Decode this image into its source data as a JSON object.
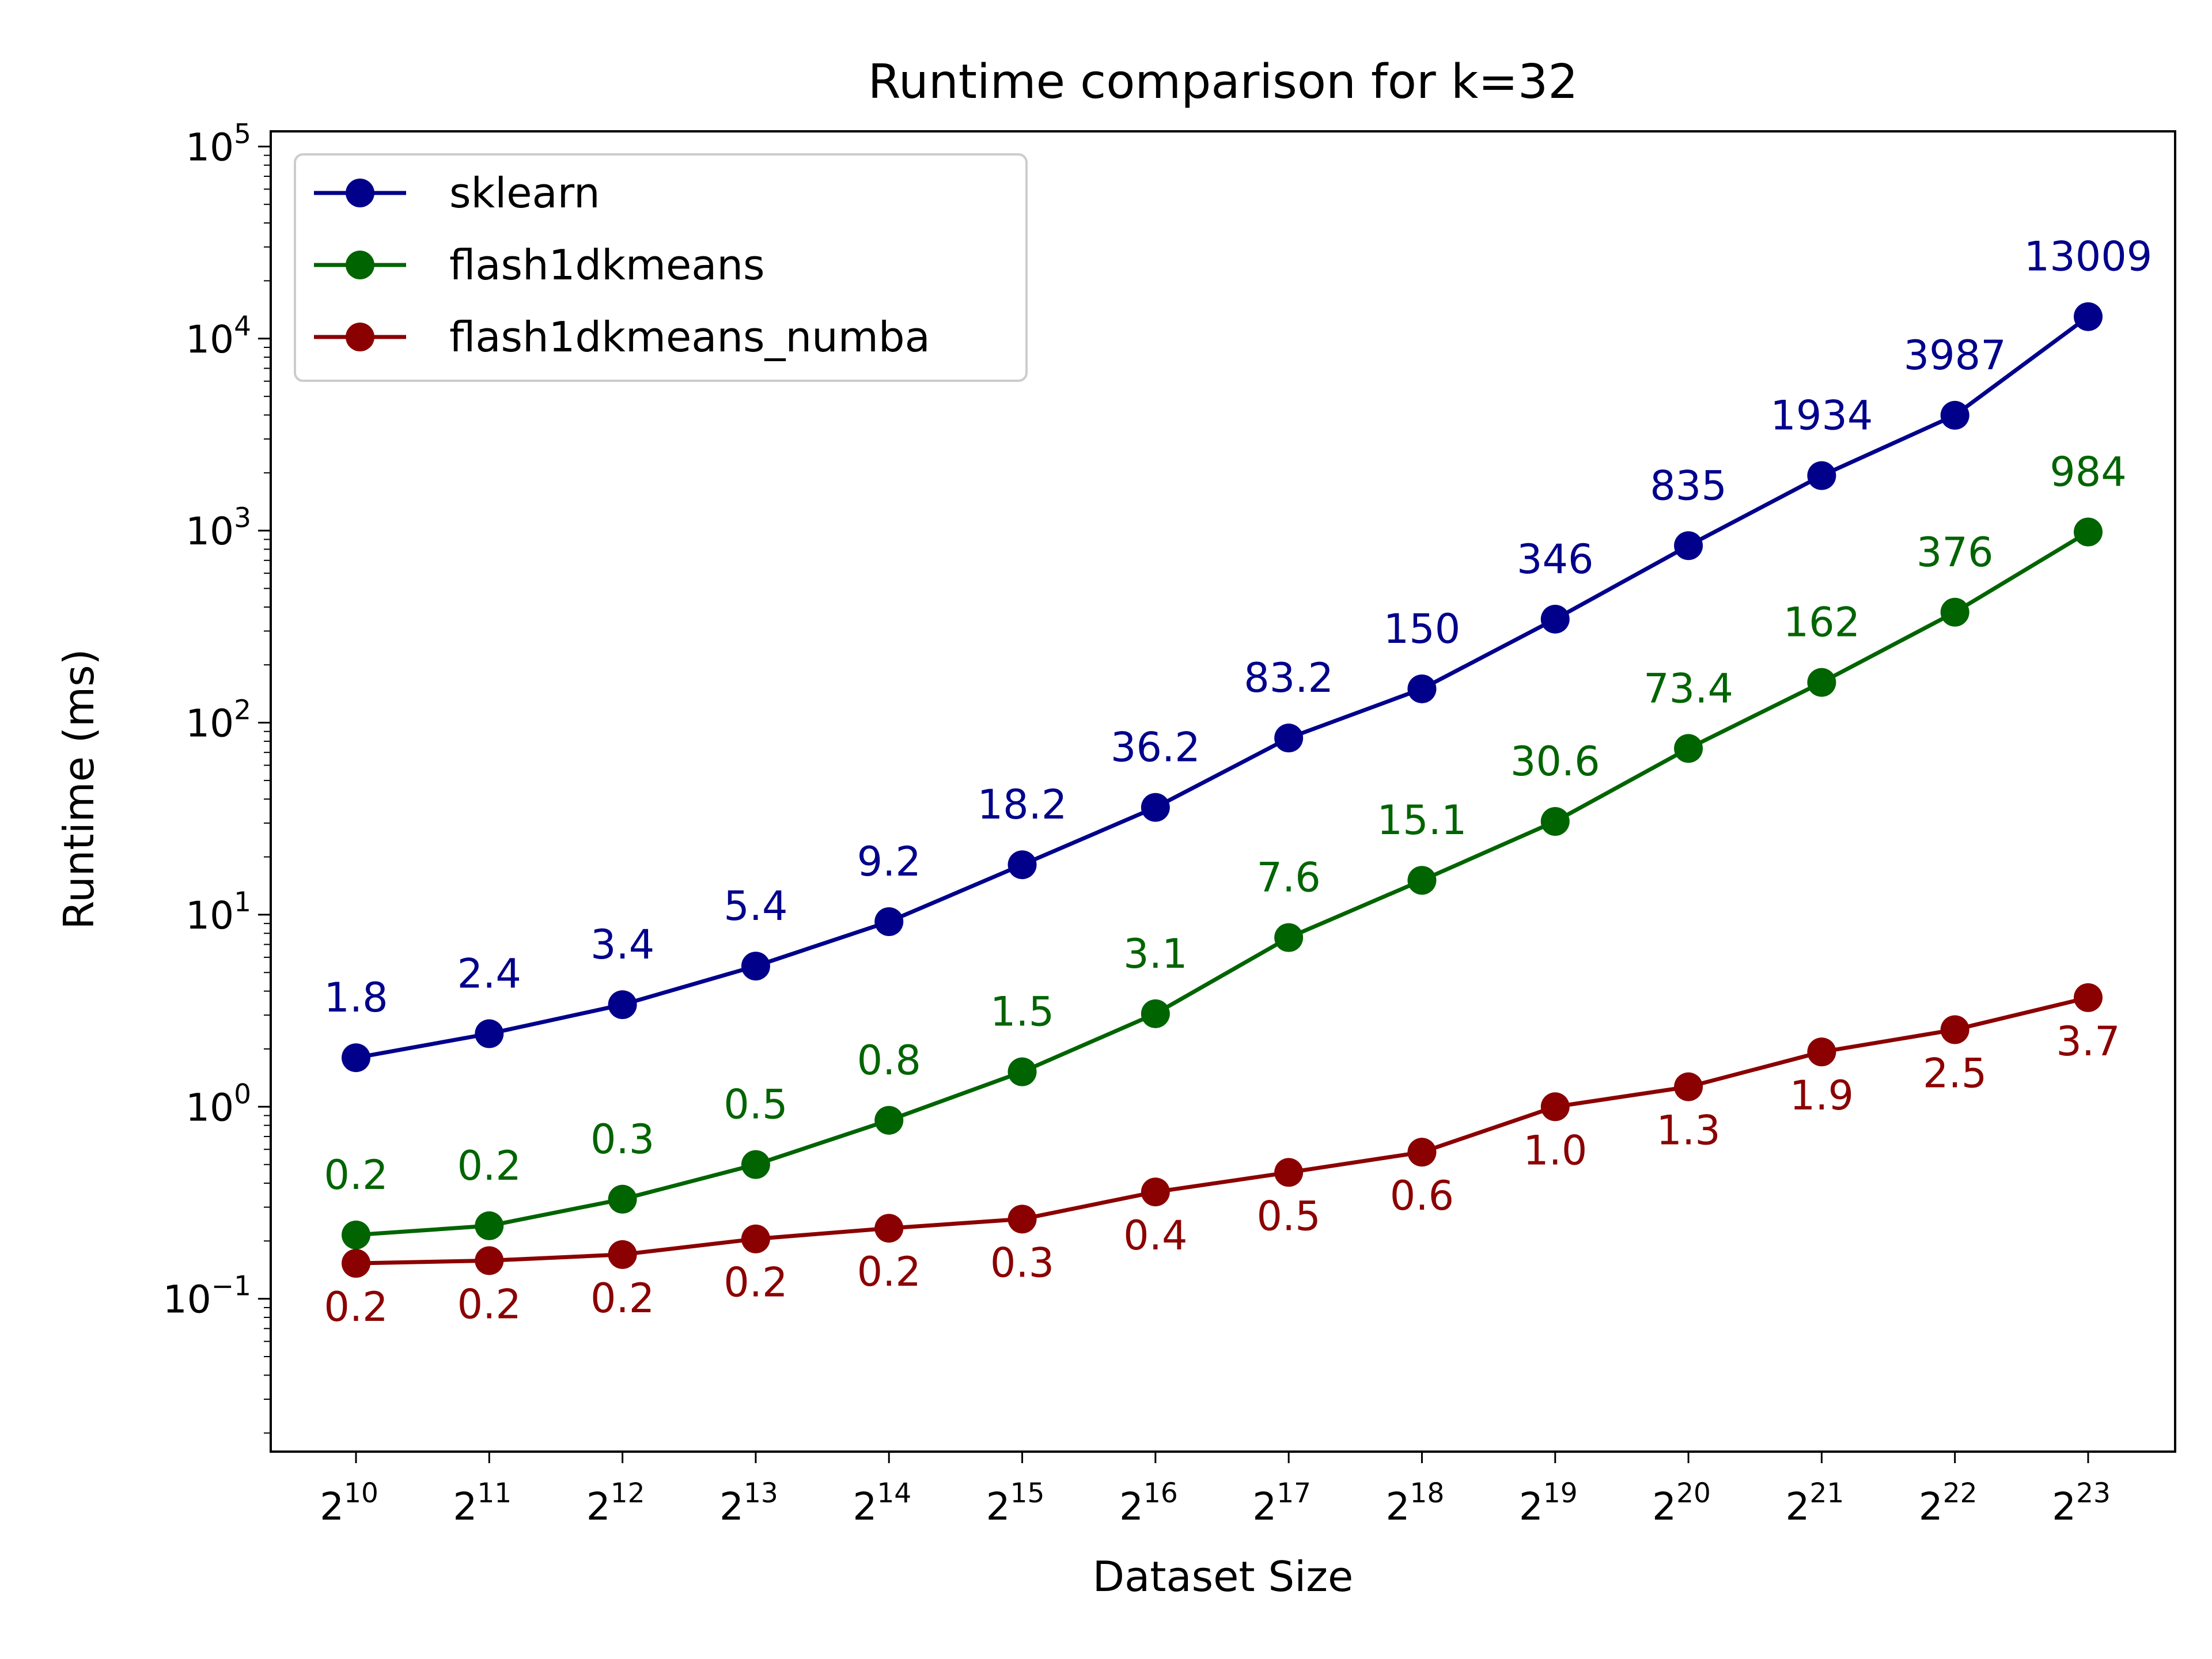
{
  "chart_data": {
    "type": "line",
    "title": "Runtime comparison for k=32",
    "xlabel": "Dataset Size",
    "ylabel": "Runtime (ms)",
    "x_exponents": [
      10,
      11,
      12,
      13,
      14,
      15,
      16,
      17,
      18,
      19,
      20,
      21,
      22,
      23
    ],
    "x_tick_base": "2",
    "y_scale": "log",
    "ylim": [
      0.016,
      120000
    ],
    "y_tick_exponents": [
      -1,
      0,
      1,
      2,
      3,
      4,
      5
    ],
    "y_tick_base": "10",
    "grid": false,
    "legend_position": "top-left",
    "series": [
      {
        "name": "sklearn",
        "color": "#00008b",
        "label_position": "above",
        "values": [
          1.8,
          2.4,
          3.4,
          5.4,
          9.2,
          18.2,
          36.2,
          83.2,
          150,
          346,
          835,
          1934,
          3987,
          13009
        ],
        "labels": [
          "1.8",
          "2.4",
          "3.4",
          "5.4",
          "9.2",
          "18.2",
          "36.2",
          "83.2",
          "150",
          "346",
          "835",
          "1934",
          "3987",
          "13009"
        ]
      },
      {
        "name": "flash1dkmeans",
        "color": "#006400",
        "label_position": "above",
        "values": [
          0.215,
          0.24,
          0.33,
          0.5,
          0.85,
          1.52,
          3.05,
          7.6,
          15.1,
          30.6,
          73.4,
          162,
          376,
          984
        ],
        "labels": [
          "0.2",
          "0.2",
          "0.3",
          "0.5",
          "0.8",
          "1.5",
          "3.1",
          "7.6",
          "15.1",
          "30.6",
          "73.4",
          "162",
          "376",
          "984"
        ]
      },
      {
        "name": "flash1dkmeans_numba",
        "color": "#8b0000",
        "label_position": "below",
        "values": [
          0.153,
          0.158,
          0.17,
          0.205,
          0.233,
          0.26,
          0.36,
          0.455,
          0.58,
          1.0,
          1.27,
          1.93,
          2.52,
          3.7
        ],
        "labels": [
          "0.2",
          "0.2",
          "0.2",
          "0.2",
          "0.2",
          "0.3",
          "0.4",
          "0.5",
          "0.6",
          "1.0",
          "1.3",
          "1.9",
          "2.5",
          "3.7"
        ]
      }
    ]
  }
}
